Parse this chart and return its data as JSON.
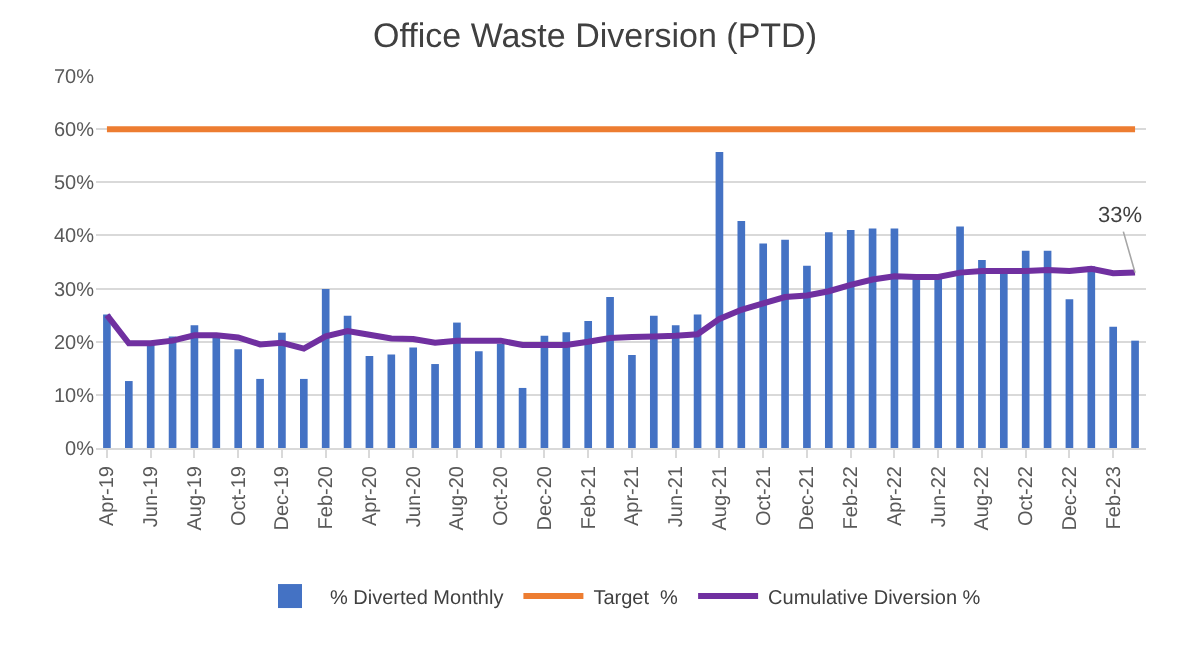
{
  "chart_data": {
    "type": "bar",
    "title": "Office Waste Diversion (PTD)",
    "categories": [
      "Apr-19",
      null,
      "Jun-19",
      null,
      "Aug-19",
      null,
      "Oct-19",
      null,
      "Dec-19",
      null,
      "Feb-20",
      null,
      "Apr-20",
      null,
      "Jun-20",
      null,
      "Aug-20",
      null,
      "Oct-20",
      null,
      "Dec-20",
      null,
      "Feb-21",
      null,
      "Apr-21",
      null,
      "Jun-21",
      null,
      "Aug-21",
      null,
      "Oct-21",
      null,
      "Dec-21",
      null,
      "Feb-22",
      null,
      "Apr-22",
      null,
      "Jun-22",
      null,
      "Aug-22",
      null,
      "Oct-22",
      null,
      "Dec-22",
      null,
      "Feb-23",
      null
    ],
    "series": [
      {
        "name": "% Diverted Monthly",
        "color": "#4472c4",
        "values": [
          25.1,
          12.6,
          19.8,
          21,
          23.1,
          21,
          18.6,
          13,
          21.7,
          13,
          29.9,
          24.9,
          17.3,
          17.6,
          18.9,
          15.8,
          23.6,
          18.2,
          19.6,
          11.3,
          21.1,
          21.8,
          23.9,
          28.4,
          17.5,
          24.9,
          23.1,
          25.1,
          55.7,
          42.7,
          38.5,
          39.2,
          34.3,
          40.6,
          41,
          41.3,
          41.3,
          32.1,
          32.1,
          41.7,
          35.4,
          33.3,
          37.1,
          37.1,
          28,
          34.2,
          22.8,
          20.2
        ]
      },
      {
        "name": "Target  %",
        "type": "line",
        "color": "#ed7d31",
        "values": [
          60,
          60,
          60,
          60,
          60,
          60,
          60,
          60,
          60,
          60,
          60,
          60,
          60,
          60,
          60,
          60,
          60,
          60,
          60,
          60,
          60,
          60,
          60,
          60,
          60,
          60,
          60,
          60,
          60,
          60,
          60,
          60,
          60,
          60,
          60,
          60,
          60,
          60,
          60,
          60,
          60,
          60,
          60,
          60,
          60,
          60,
          60,
          60
        ]
      },
      {
        "name": "Cumulative Diversion %",
        "type": "line",
        "color": "#7030a0",
        "values": [
          25,
          19.7,
          19.7,
          20.2,
          21.2,
          21.2,
          20.8,
          19.5,
          19.8,
          18.7,
          21,
          22,
          21.3,
          20.6,
          20.5,
          19.8,
          20.2,
          20.2,
          20.2,
          19.4,
          19.4,
          19.4,
          20,
          20.7,
          20.9,
          21,
          21.1,
          21.4,
          24.3,
          26,
          27.2,
          28.4,
          28.7,
          29.5,
          30.7,
          31.7,
          32.3,
          32.2,
          32.2,
          33,
          33.3,
          33.3,
          33.3,
          33.5,
          33.3,
          33.7,
          32.9,
          33
        ],
        "value_labels": [
          null,
          null,
          null,
          null,
          null,
          null,
          null,
          null,
          null,
          null,
          null,
          null,
          null,
          null,
          null,
          null,
          null,
          null,
          null,
          null,
          null,
          null,
          null,
          null,
          null,
          null,
          null,
          null,
          null,
          null,
          null,
          null,
          null,
          null,
          null,
          null,
          null,
          null,
          null,
          null,
          null,
          null,
          null,
          null,
          null,
          null,
          null,
          "33%"
        ]
      }
    ],
    "ylim": [
      0,
      70
    ],
    "yticks": [
      {
        "value": 0,
        "label": "0%"
      },
      {
        "value": 10,
        "label": "10%"
      },
      {
        "value": 20,
        "label": "20%"
      },
      {
        "value": 30,
        "label": "30%"
      },
      {
        "value": 40,
        "label": "40%"
      },
      {
        "value": 50,
        "label": "50%"
      },
      {
        "value": 60,
        "label": "60%"
      },
      {
        "value": 70,
        "label": "70%"
      }
    ],
    "grid": "y",
    "legend": "bottom",
    "line_style": "solid",
    "marker": "none"
  }
}
